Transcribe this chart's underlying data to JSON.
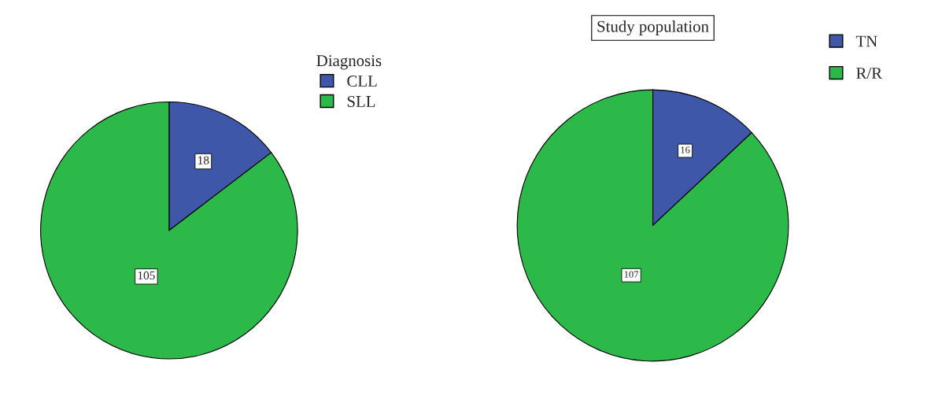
{
  "chart_data": [
    {
      "type": "pie",
      "legend_title": "Diagnosis",
      "categories": [
        "CLL",
        "SLL"
      ],
      "values": [
        18,
        105
      ],
      "colors": [
        "#3f57a9",
        "#2db84a"
      ],
      "data_labels": true,
      "legend": "top right"
    },
    {
      "type": "pie",
      "title": "Study population",
      "categories": [
        "TN",
        "R/R"
      ],
      "values": [
        16,
        107
      ],
      "colors": [
        "#3f57a9",
        "#2db84a"
      ],
      "data_labels": true,
      "legend": "top right"
    }
  ]
}
